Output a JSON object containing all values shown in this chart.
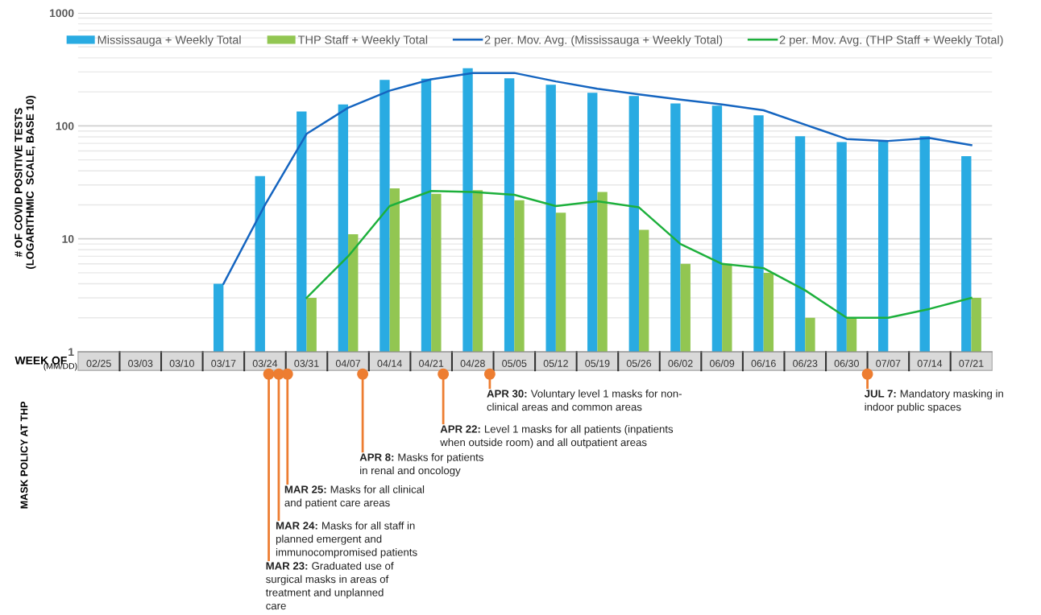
{
  "chart_data": {
    "type": "bar",
    "ylabel": "# OF COVID POSITIVE TESTS\n(LOGARITHMIC  SCALE, BASE 10)",
    "xlabel": "WEEK OF",
    "categories": [
      "02/25",
      "03/03",
      "03/10",
      "03/17",
      "03/24",
      "03/31",
      "04/07",
      "04/14",
      "04/21",
      "04/28",
      "05/05",
      "05/12",
      "05/19",
      "05/26",
      "06/02",
      "06/09",
      "06/16",
      "06/23",
      "06/30",
      "07/07",
      "07/14",
      "07/21"
    ],
    "series": [
      {
        "name": "Mississauga + Weekly Total",
        "color": "#29abe2",
        "values": [
          null,
          null,
          null,
          4,
          36,
          134,
          155,
          255,
          262,
          324,
          264,
          231,
          196,
          184,
          158,
          151,
          124,
          81,
          72,
          75,
          81,
          54
        ]
      },
      {
        "name": "THP Staff + Weekly Total",
        "color": "#92c652",
        "values": [
          null,
          null,
          null,
          null,
          null,
          3,
          11,
          28,
          25,
          27,
          22,
          17,
          26,
          12,
          6,
          6,
          5,
          2,
          2,
          null,
          null,
          3
        ]
      },
      {
        "name": "2 per. Mov. Avg. (Mississauga + Weekly Total)",
        "type": "line",
        "color": "#1565c0",
        "values": [
          null,
          null,
          null,
          4,
          20,
          85,
          144.5,
          205,
          258.5,
          293,
          294,
          247.5,
          213.5,
          190,
          171,
          154.5,
          137.5,
          102.5,
          76.5,
          73.5,
          78,
          67.5
        ]
      },
      {
        "name": "2 per. Mov. Avg. (THP Staff + Weekly Total)",
        "type": "line",
        "color": "#1db03c",
        "values": [
          null,
          null,
          null,
          null,
          null,
          3,
          7,
          19.5,
          26.5,
          26,
          24.5,
          19.5,
          21.5,
          19,
          9,
          6,
          5.5,
          3.5,
          2,
          2,
          2.4,
          3
        ]
      }
    ],
    "log": true,
    "ylim": [
      1,
      1000
    ],
    "yticks": [
      1,
      10,
      100,
      1000
    ],
    "grid": "y",
    "legend": "top",
    "marker": "none",
    "line_style": "solid",
    "annotations": [
      "(MM/DD)",
      "MASK POLICY AT THP",
      "MAR 23: Graduated use of\nsurgical masks in areas of\ntreatment and unplanned\ncare",
      "MAR 24: Masks for all staff in\nplanned emergent and\nimmunocompromised patients",
      "MAR 25: Masks for all clinical\nand patient care areas",
      "APR 8: Masks for patients\nin renal and oncology",
      "APR 22: Level 1 masks for all patients (inpatients\nwhen outside room) and all outpatient areas",
      "APR 30: Voluntary level 1 masks for non-\nclinical areas and common areas",
      "JUL 7: Mandatory masking in\nindoor public spaces"
    ]
  }
}
